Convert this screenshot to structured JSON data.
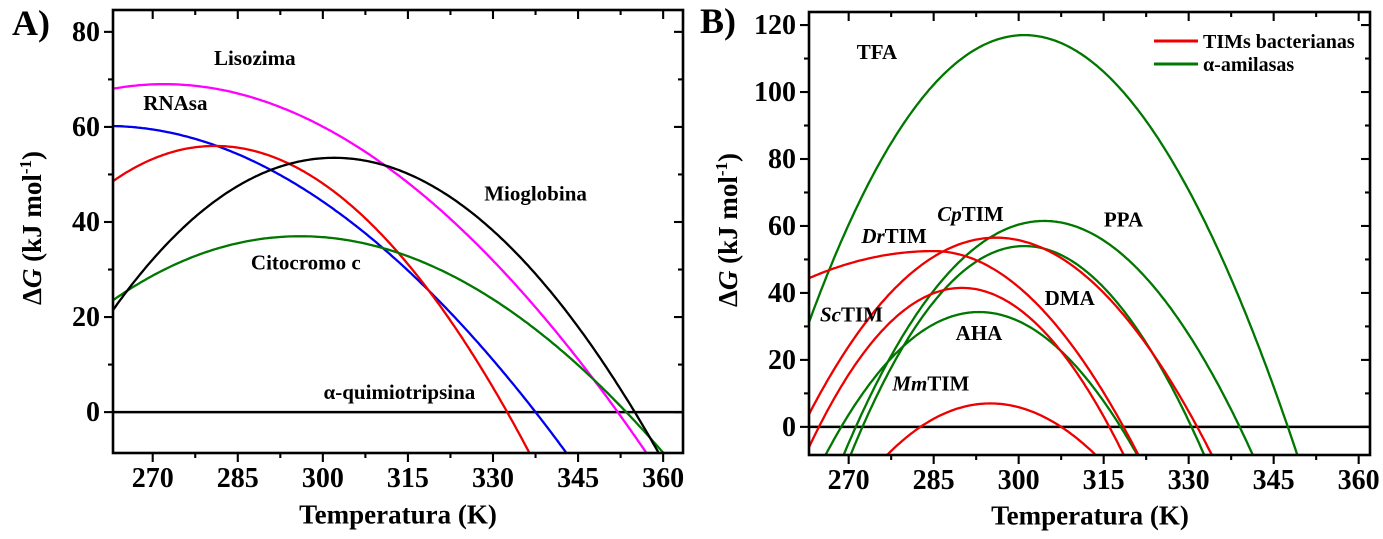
{
  "figure": {
    "background": "#ffffff",
    "panels": [
      {
        "letter": "A)",
        "xlabel": "Temperatura (K)",
        "ylabel_delta": "Δ",
        "ylabel_g": "G",
        "ylabel_unit_open": " (kJ mol",
        "ylabel_sup": "-1",
        "ylabel_unit_close": ")"
      },
      {
        "letter": "B)",
        "xlabel": "Temperatura (K)",
        "ylabel_delta": "Δ",
        "ylabel_g": "G",
        "ylabel_unit_open": " (kJ mol",
        "ylabel_sup": "-1",
        "ylabel_unit_close": ")"
      }
    ]
  },
  "chart_data": [
    {
      "panel": "A",
      "type": "line",
      "title": "",
      "xlabel": "Temperatura (K)",
      "ylabel": "ΔG (kJ mol⁻¹)",
      "xlim": [
        263,
        363.5
      ],
      "ylim": [
        -8.6,
        84.6
      ],
      "xticks": [
        270,
        285,
        300,
        315,
        330,
        345,
        360
      ],
      "yticks": [
        0,
        20,
        40,
        60,
        80
      ],
      "x_minor_step": 7.5,
      "y_minor_step": 10,
      "grid": false,
      "zero_line": true,
      "frame": true,
      "series": [
        {
          "name": "RNAsa",
          "italic_prefix": "",
          "rest": "RNAsa",
          "color": "#0000ee",
          "peak_t": 262,
          "peak_dg": 60.2,
          "zero_cross_hot": 337.5,
          "zero_cross_cold": null,
          "value_at_left_edge": 60,
          "label_t": 274,
          "label_dg": 65
        },
        {
          "name": "Lisozima",
          "italic_prefix": "",
          "rest": "Lisozima",
          "color": "#ff00ff",
          "peak_t": 272,
          "peak_dg": 69,
          "zero_cross_hot": 352,
          "zero_cross_cold": null,
          "value_at_left_edge": 68,
          "label_t": 288,
          "label_dg": 74.5
        },
        {
          "name": "α-quimiotripsina",
          "italic_prefix": "",
          "rest": "α-quimiotripsina",
          "color": "#ee0000",
          "peak_t": 281,
          "peak_dg": 56,
          "zero_cross_hot": 332.5,
          "zero_cross_cold": null,
          "value_at_left_edge": 48,
          "label_t": 313.5,
          "label_dg": 4.2
        },
        {
          "name": "Citocromo c",
          "italic_prefix": "",
          "rest": "Citocromo c",
          "color": "#007700",
          "peak_t": 296,
          "peak_dg": 37,
          "zero_cross_hot": 353.5,
          "zero_cross_cold": null,
          "value_at_left_edge": 24,
          "label_t": 297,
          "label_dg": 31.5
        },
        {
          "name": "Mioglobina",
          "italic_prefix": "",
          "rest": "Mioglobina",
          "color": "#000000",
          "peak_t": 302,
          "peak_dg": 53.5,
          "zero_cross_hot": 355,
          "zero_cross_cold": null,
          "value_at_left_edge": 25,
          "label_t": 337.5,
          "label_dg": 46
        }
      ]
    },
    {
      "panel": "B",
      "type": "line",
      "title": "",
      "xlabel": "Temperatura (K)",
      "ylabel": "ΔG (kJ mol⁻¹)",
      "xlim": [
        263,
        362
      ],
      "ylim": [
        -8.4,
        123.9
      ],
      "xticks": [
        270,
        285,
        300,
        315,
        330,
        345,
        360
      ],
      "yticks": [
        0,
        20,
        40,
        60,
        80,
        100,
        120
      ],
      "x_minor_step": 7.5,
      "y_minor_step": 10,
      "grid": false,
      "zero_line": true,
      "frame": true,
      "legend": {
        "position": "top-right",
        "items": [
          {
            "label": "TIMs bacterianas",
            "color": "#ee0000"
          },
          {
            "label": "α-amilasas",
            "color": "#007700"
          }
        ]
      },
      "series": [
        {
          "name": "TFA",
          "italic_prefix": "",
          "rest": "TFA",
          "color": "#007700",
          "peak_t": 301,
          "peak_dg": 117,
          "zero_cross_hot": 347.5,
          "zero_cross_cold": 267,
          "label_t": 275,
          "label_dg": 112
        },
        {
          "name": "PPA",
          "italic_prefix": "",
          "rest": "PPA",
          "color": "#007700",
          "peak_t": 304.5,
          "peak_dg": 61.5,
          "zero_cross_hot": 339,
          "zero_cross_cold": 272.5,
          "label_t": 318.5,
          "label_dg": 62
        },
        {
          "name": "DMA",
          "italic_prefix": "",
          "rest": "DMA",
          "color": "#007700",
          "peak_t": 301,
          "peak_dg": 54,
          "zero_cross_hot": 330.5,
          "zero_cross_cold": 271,
          "label_t": 309,
          "label_dg": 38.5
        },
        {
          "name": "AHA",
          "italic_prefix": "",
          "rest": "AHA",
          "color": "#007700",
          "peak_t": 293,
          "peak_dg": 34.3,
          "zero_cross_hot": 318,
          "zero_cross_cold": 270.5,
          "label_t": 293,
          "label_dg": 28
        },
        {
          "name": "DrTIM",
          "italic_prefix": "Dr",
          "rest": "TIM",
          "color": "#ee0000",
          "peak_t": 285,
          "peak_dg": 52.5,
          "zero_cross_hot": 318.5,
          "zero_cross_cold": null,
          "w_cold": 56,
          "value_at_left_edge": 44,
          "label_t": 278,
          "label_dg": 57
        },
        {
          "name": "CpTIM",
          "italic_prefix": "Cp",
          "rest": "TIM",
          "color": "#ee0000",
          "peak_t": 296,
          "peak_dg": 56.5,
          "zero_cross_hot": 331.5,
          "zero_cross_cold": null,
          "value_at_left_edge": 12,
          "label_t": 291.5,
          "label_dg": 63.5
        },
        {
          "name": "ScTIM",
          "italic_prefix": "Sc",
          "rest": "TIM",
          "color": "#ee0000",
          "peak_t": 290,
          "peak_dg": 41.5,
          "zero_cross_hot": 316,
          "zero_cross_cold": 265,
          "label_t": 270.5,
          "label_dg": 33.5
        },
        {
          "name": "MmTIM",
          "italic_prefix": "Mm",
          "rest": "TIM",
          "color": "#ee0000",
          "peak_t": 295,
          "peak_dg": 7,
          "zero_cross_hot": 307.5,
          "zero_cross_cold": 284,
          "label_t": 284.5,
          "label_dg": 13
        }
      ]
    }
  ]
}
